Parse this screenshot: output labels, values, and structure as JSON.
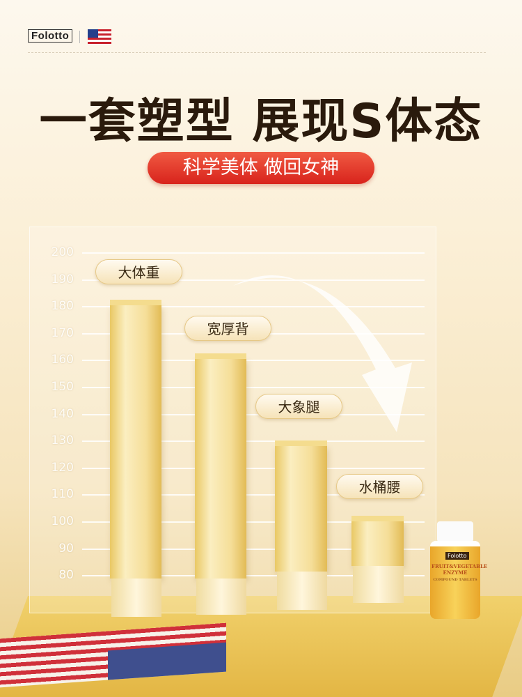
{
  "brand": {
    "logo_text": "Folotto",
    "trademark": "®"
  },
  "headline": "一套塑型 展现S体态",
  "subheadline": "科学美体  做回女神",
  "axis_ticks": [
    "200",
    "190",
    "180",
    "170",
    "160",
    "150",
    "140",
    "130",
    "120",
    "110",
    "100",
    "90",
    "80"
  ],
  "bars": [
    {
      "label": "大体重"
    },
    {
      "label": "宽厚背"
    },
    {
      "label": "大象腿"
    },
    {
      "label": "水桶腰"
    }
  ],
  "product": {
    "logo": "Folotto",
    "name": "FRUIT&VEGETABLE ENZYME",
    "sub": "COMPOUND TABLETS"
  },
  "colors": {
    "accent": "#e0301e",
    "gold": "#f0cf6a"
  }
}
